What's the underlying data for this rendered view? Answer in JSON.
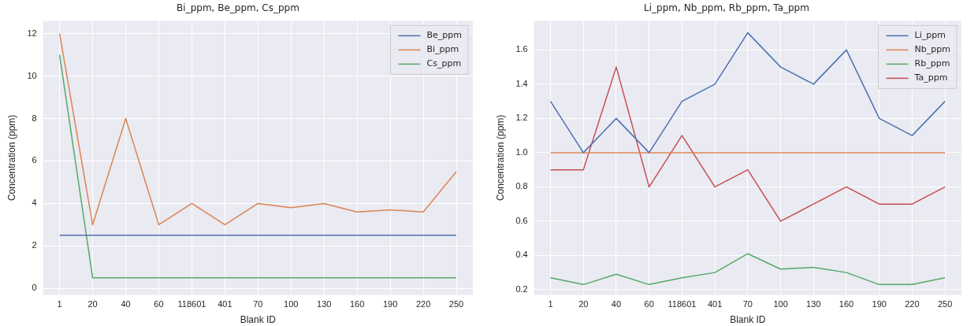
{
  "chart_data": [
    {
      "type": "line",
      "title": "Bi_ppm, Be_ppm, Cs_ppm",
      "xlabel": "Blank ID",
      "ylabel": "Concentration (ppm)",
      "categories": [
        "1",
        "20",
        "40",
        "60",
        "118601",
        "401",
        "70",
        "100",
        "130",
        "160",
        "190",
        "220",
        "250"
      ],
      "series": [
        {
          "name": "Be_ppm",
          "color": "#4c72b0",
          "values": [
            2.5,
            2.5,
            2.5,
            2.5,
            2.5,
            2.5,
            2.5,
            2.5,
            2.5,
            2.5,
            2.5,
            2.5,
            2.5
          ]
        },
        {
          "name": "Bi_ppm",
          "color": "#dd8452",
          "values": [
            12,
            3,
            8,
            3,
            4,
            3,
            4,
            3.8,
            4,
            3.6,
            3.7,
            3.6,
            5.5
          ]
        },
        {
          "name": "Cs_ppm",
          "color": "#55a868",
          "values": [
            11,
            0.5,
            0.5,
            0.5,
            0.5,
            0.5,
            0.5,
            0.5,
            0.5,
            0.5,
            0.5,
            0.5,
            0.5
          ]
        }
      ],
      "ylim": [
        -0.3,
        12.6
      ],
      "yticks": [
        0,
        2,
        4,
        6,
        8,
        10,
        12
      ],
      "grid": true,
      "legend": "top right",
      "marker": "none",
      "line_style": "solid"
    },
    {
      "type": "line",
      "title": "Li_ppm, Nb_ppm, Rb_ppm, Ta_ppm",
      "xlabel": "Blank ID",
      "ylabel": "Concentration (ppm)",
      "categories": [
        "1",
        "20",
        "40",
        "60",
        "118601",
        "401",
        "70",
        "100",
        "130",
        "160",
        "190",
        "220",
        "250"
      ],
      "series": [
        {
          "name": "Li_ppm",
          "color": "#4c72b0",
          "values": [
            1.3,
            1.0,
            1.2,
            1.0,
            1.3,
            1.4,
            1.7,
            1.5,
            1.4,
            1.6,
            1.2,
            1.1,
            1.3
          ]
        },
        {
          "name": "Nb_ppm",
          "color": "#dd8452",
          "values": [
            1.0,
            1.0,
            1.0,
            1.0,
            1.0,
            1.0,
            1.0,
            1.0,
            1.0,
            1.0,
            1.0,
            1.0,
            1.0
          ]
        },
        {
          "name": "Rb_ppm",
          "color": "#55a868",
          "values": [
            0.27,
            0.23,
            0.29,
            0.23,
            0.27,
            0.3,
            0.41,
            0.32,
            0.33,
            0.3,
            0.23,
            0.23,
            0.27
          ]
        },
        {
          "name": "Ta_ppm",
          "color": "#c44e52",
          "values": [
            0.9,
            0.9,
            1.5,
            0.8,
            1.1,
            0.8,
            0.9,
            0.6,
            0.7,
            0.8,
            0.7,
            0.7,
            0.8
          ]
        }
      ],
      "ylim": [
        0.17,
        1.77
      ],
      "yticks": [
        {
          "value": 0.2,
          "label": "0.2"
        },
        {
          "value": 0.4,
          "label": "0.4"
        },
        {
          "value": 0.6,
          "label": "0.6"
        },
        {
          "value": 0.8,
          "label": "0.8"
        },
        {
          "value": 1.0,
          "label": "1.0"
        },
        {
          "value": 1.2,
          "label": "1.2"
        },
        {
          "value": 1.4,
          "label": "1.4"
        },
        {
          "value": 1.6,
          "label": "1.6"
        }
      ],
      "grid": true,
      "legend": "top right",
      "marker": "none",
      "line_style": "solid"
    }
  ]
}
